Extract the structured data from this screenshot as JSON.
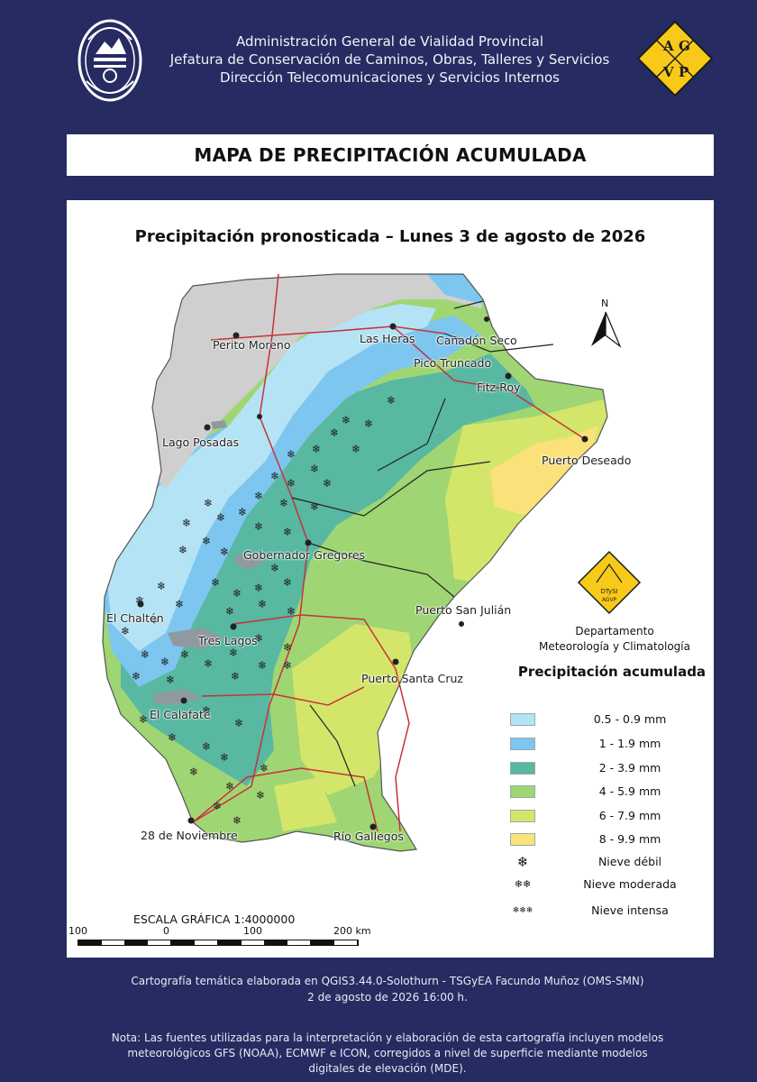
{
  "header": {
    "line1": "Administración General de Vialidad Provincial",
    "line2": "Jefatura de Conservación de Caminos, Obras, Talleres y Servicios",
    "line3": "Dirección Telecomunicaciones y Servicios Internos",
    "logo_letters": [
      "A",
      "G",
      "V",
      "P"
    ]
  },
  "title": "MAPA DE PRECIPITACIÓN ACUMULADA",
  "map": {
    "subtitle": "Precipitación pronosticada – Lunes 3 de agosto de 2026",
    "north_label": "N",
    "places": [
      "Perito Moreno",
      "Las Heras",
      "Cañadón Seco",
      "Pico Truncado",
      "Fitz Roy",
      "Lago Posadas",
      "Puerto Deseado",
      "Gobernador Gregores",
      "El Chaltén",
      "Puerto San Julián",
      "Tres Lagos",
      "Puerto Santa Cruz",
      "El Calafate",
      "28 de Noviembre",
      "Río Gallegos"
    ]
  },
  "department": {
    "line1": "Departamento",
    "line2": "Meteorología y Climatología",
    "badge_text": "DTySI",
    "badge_sub": "AGVP"
  },
  "legend": {
    "title": "Precipitación acumulada",
    "ranges": [
      {
        "label": "0.5 - 0.9 mm",
        "color": "#b4e3f6"
      },
      {
        "label": "1 - 1.9 mm",
        "color": "#7cc6ef"
      },
      {
        "label": "2 - 3.9 mm",
        "color": "#58b8a2"
      },
      {
        "label": "4 - 5.9 mm",
        "color": "#9fd673"
      },
      {
        "label": "6 - 7.9 mm",
        "color": "#d4e66a"
      },
      {
        "label": "8 - 9.9 mm",
        "color": "#fbe17a"
      }
    ],
    "snow": [
      {
        "label": "Nieve débil",
        "symbol": "❄"
      },
      {
        "label": "Nieve moderada",
        "symbol": "❄❄"
      },
      {
        "label": "Nieve intensa",
        "symbol": "❄❄❄"
      }
    ]
  },
  "scale": {
    "title": "ESCALA GRÁFICA 1:4000000",
    "ticks": [
      "100",
      "0",
      "100",
      "200 km"
    ]
  },
  "footer": {
    "credit_line1": "Cartografía temática elaborada en QGIS3.44.0-Solothurn - TSGyEA Facundo Muñoz (OMS-SMN)",
    "credit_line2": "2 de agosto de 2026 16:00 h.",
    "note_line1": "Nota: Las fuentes utilizadas para la interpretación y elaboración de esta cartografía incluyen modelos",
    "note_line2": "meteorológicos GFS (NOAA), ECMWF e ICON, corregidos a nivel de superficie mediante modelos",
    "note_line3": "digitales de elevación (MDE)."
  }
}
